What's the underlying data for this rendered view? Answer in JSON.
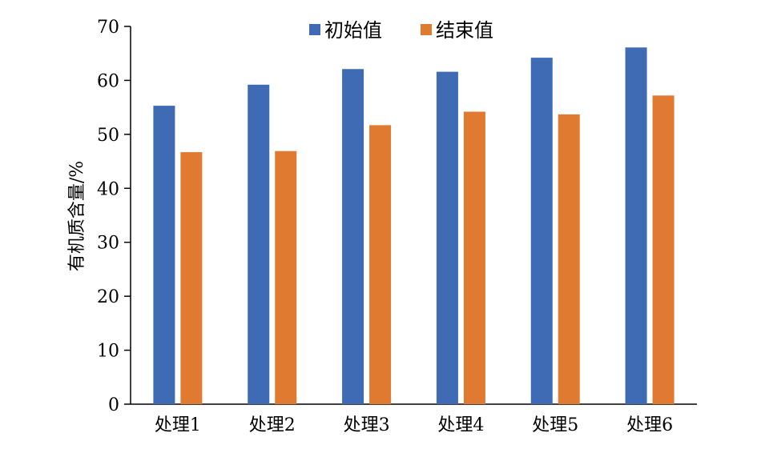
{
  "chart_data": {
    "type": "bar",
    "categories": [
      "处理1",
      "处理2",
      "处理3",
      "处理4",
      "处理5",
      "处理6"
    ],
    "series": [
      {
        "name": "初始值",
        "values": [
          55.3,
          59.2,
          62.1,
          61.6,
          64.2,
          66.1
        ],
        "color": "#3f6bb5"
      },
      {
        "name": "结束值",
        "values": [
          46.7,
          46.9,
          51.7,
          54.2,
          53.7,
          57.2
        ],
        "color": "#e07a30"
      }
    ],
    "ylabel": "有机质含量/%",
    "ylim": [
      0,
      70
    ],
    "yticks": [
      0,
      10,
      20,
      30,
      40,
      50,
      60,
      70
    ],
    "legend_position": "top",
    "grid": false
  }
}
